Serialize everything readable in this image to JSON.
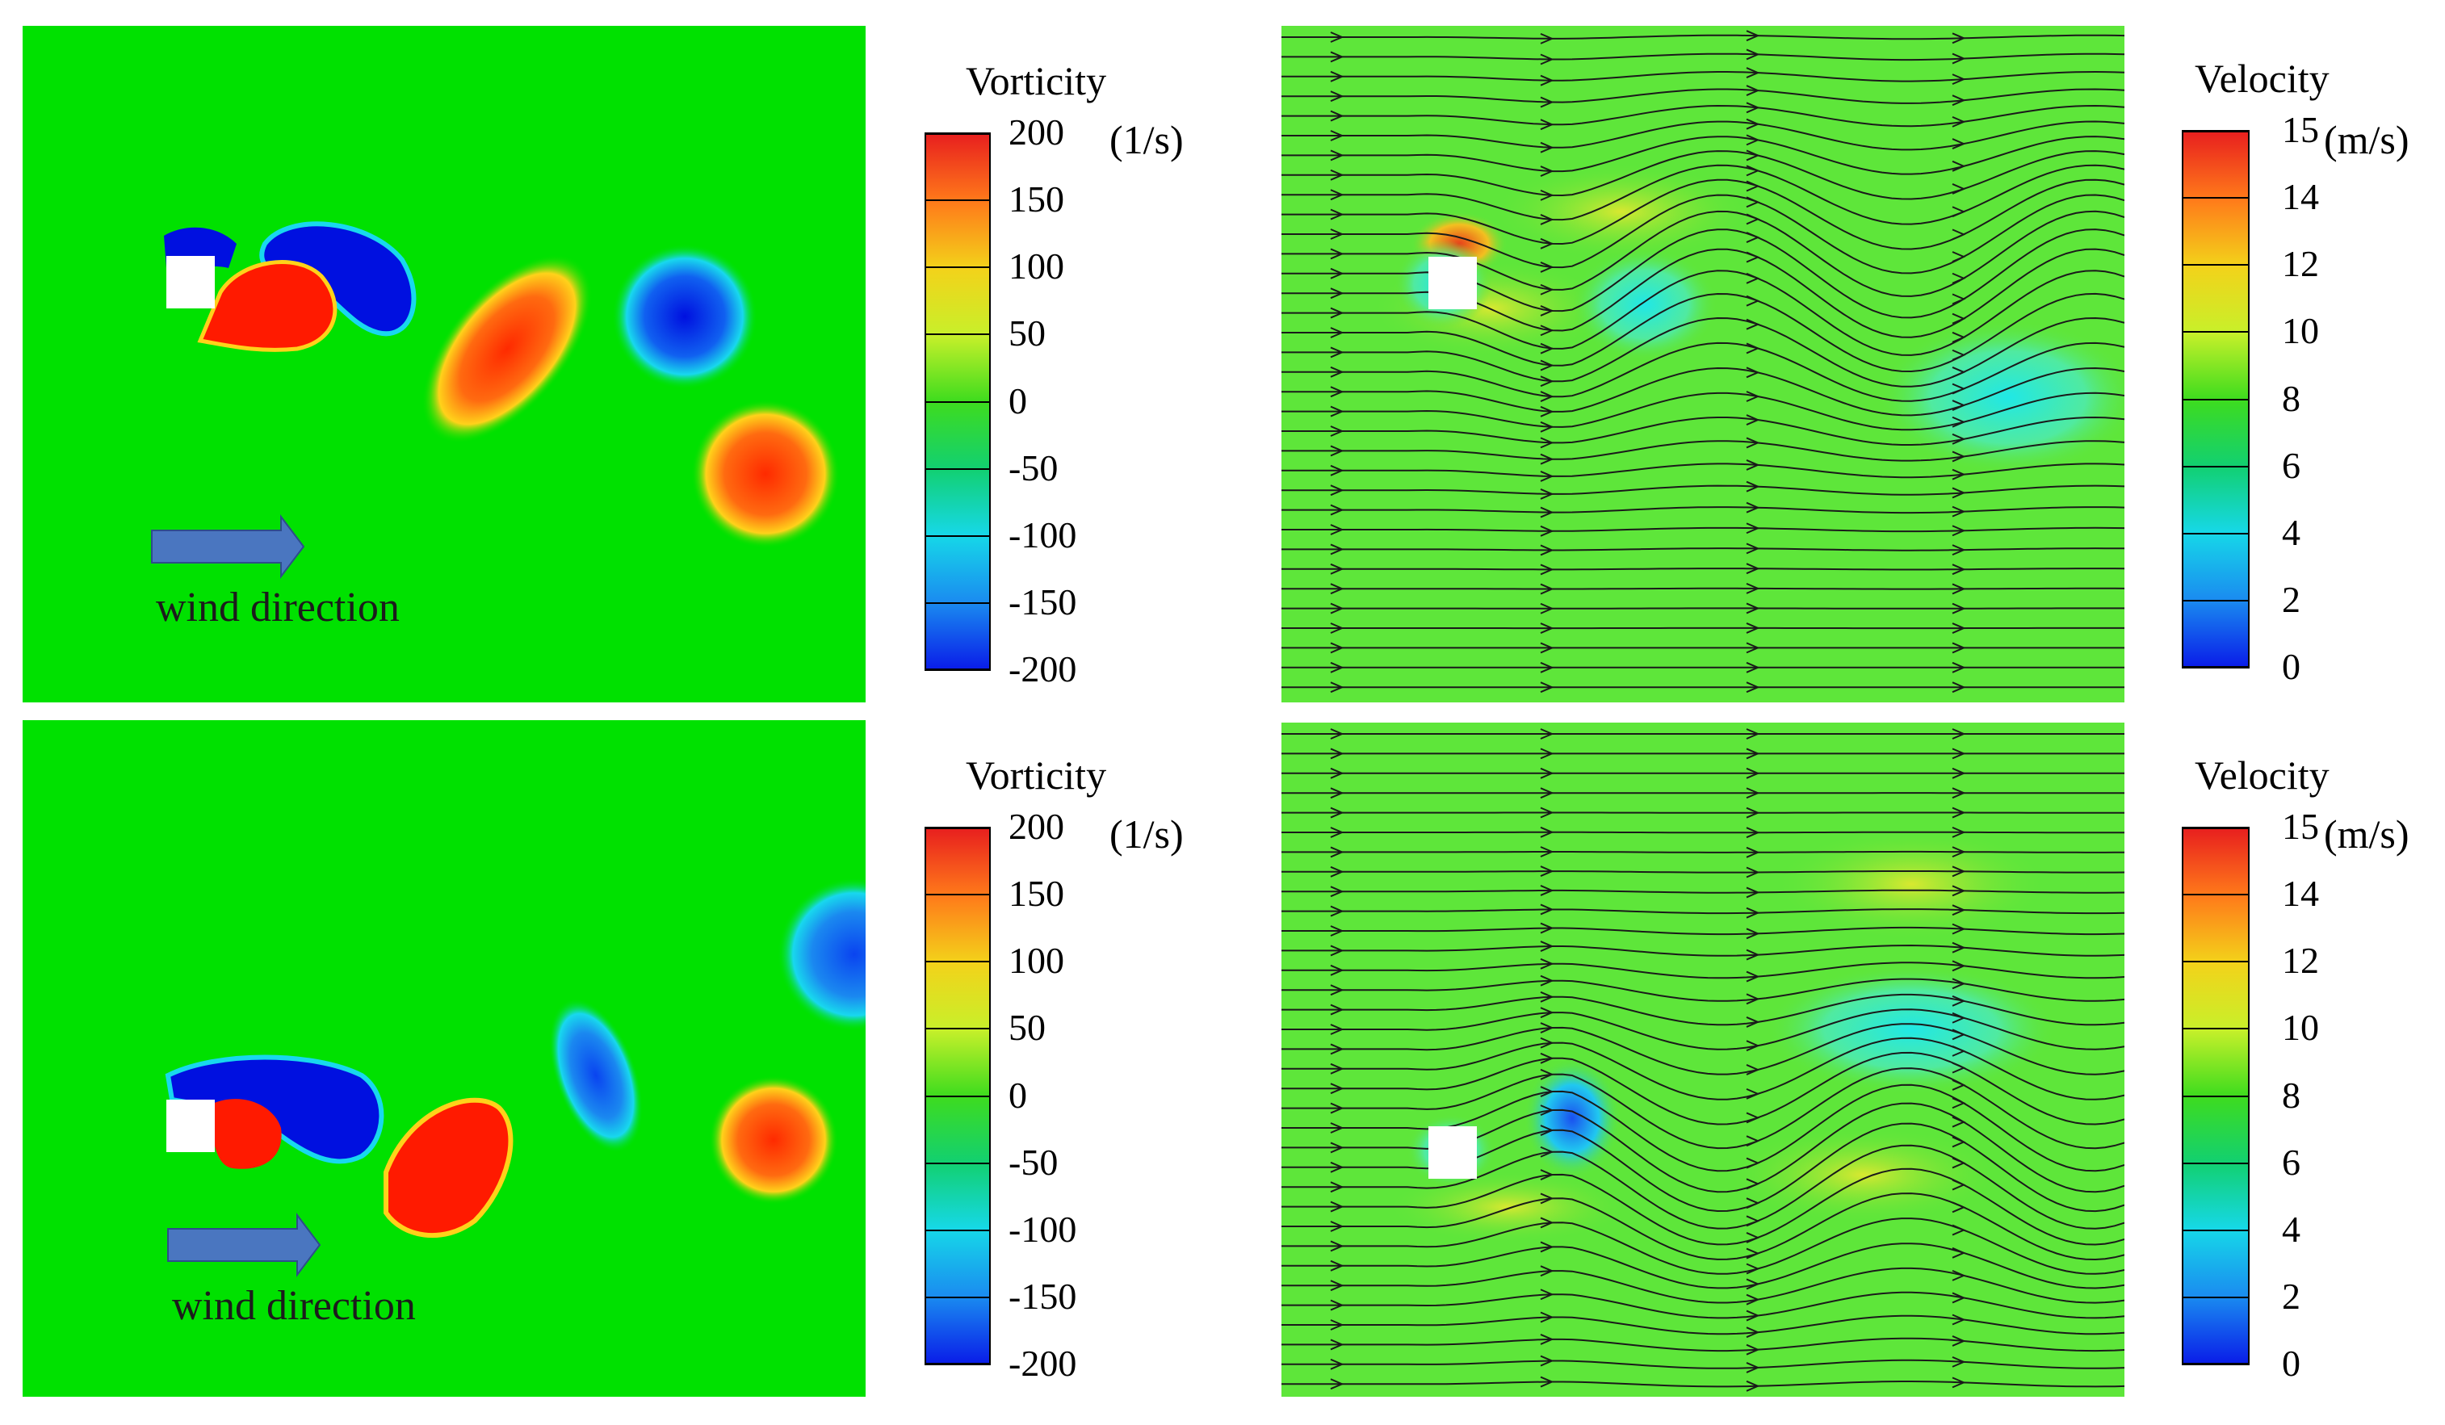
{
  "panels": [
    {
      "id": "vorticity-top"
    },
    {
      "id": "velocity-top"
    },
    {
      "id": "vorticity-bottom"
    },
    {
      "id": "velocity-bottom"
    }
  ],
  "annotation": {
    "wind_label": "wind direction"
  },
  "legends": {
    "vorticity": {
      "title": "Vorticity",
      "unit": "(1/s)",
      "ticks": [
        "200",
        "150",
        "100",
        "50",
        "0",
        "-50",
        "-100",
        "-150",
        "-200"
      ],
      "colors": [
        "#e8201e",
        "#ff7a1a",
        "#f3d21a",
        "#c8f02a",
        "#3edc1e",
        "#12d070",
        "#16d8e8",
        "#1a8cf0",
        "#0a1ee8"
      ]
    },
    "velocity": {
      "title": "Velocity",
      "unit": "(m/s)",
      "ticks": [
        "15",
        "14",
        "12",
        "10",
        "8",
        "6",
        "4",
        "2",
        "0"
      ],
      "colors": [
        "#e8201e",
        "#ff7a1a",
        "#f3d21a",
        "#c8f02a",
        "#3edc1e",
        "#12d070",
        "#16d8e8",
        "#1a8cf0",
        "#0a1ee8"
      ]
    }
  }
}
